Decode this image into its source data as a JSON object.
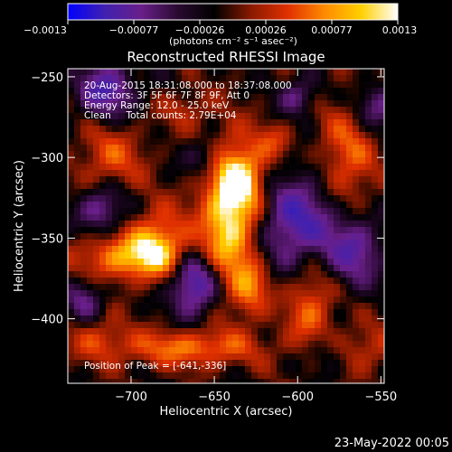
{
  "chart_data": {
    "type": "heatmap",
    "title": "Reconstructed RHESSI Image",
    "xlabel": "Heliocentric X (arcsec)",
    "ylabel": "Heliocentric Y (arcsec)",
    "xlim": [
      -738,
      -548
    ],
    "ylim": [
      -440,
      -245
    ],
    "x_ticks": [
      -700,
      -650,
      -600,
      -550
    ],
    "x_tick_labels": [
      "−700",
      "−650",
      "−600",
      "−550"
    ],
    "y_ticks": [
      -250,
      -300,
      -350,
      -400
    ],
    "y_tick_labels": [
      "−250",
      "−300",
      "−350",
      "−400"
    ],
    "colorbar": {
      "range": [
        -0.0013,
        0.0013
      ],
      "tick_labels": [
        "−0.0013",
        "−0.00077",
        "−0.00026",
        "0.00026",
        "0.00077",
        "0.0013"
      ],
      "unit_label": "(photons cm⁻² s⁻¹ asec⁻²)",
      "colormap": [
        "#0000ff",
        "#4020b0",
        "#6a1f8a",
        "#2a0a30",
        "#000000",
        "#8a1a00",
        "#e03000",
        "#ff8a00",
        "#ffd000",
        "#ffffff"
      ]
    },
    "annotations": [
      "20-Aug-2015 18:31:08.000 to 18:37:08.000",
      "Detectors: 3F 5F 6F 7F 8F 9F, Att 0",
      "Energy Range: 12.0 - 25.0 keV",
      "Clean     Total counts: 2.79E+04"
    ],
    "peak_label": "Position of Peak = [-641,-336]",
    "peak": [
      -641,
      -336
    ],
    "grid": false,
    "legend": "none"
  },
  "footer_date": "23-May-2022 00:05",
  "colors": {
    "background": "#000000",
    "text": "#ffffff"
  }
}
